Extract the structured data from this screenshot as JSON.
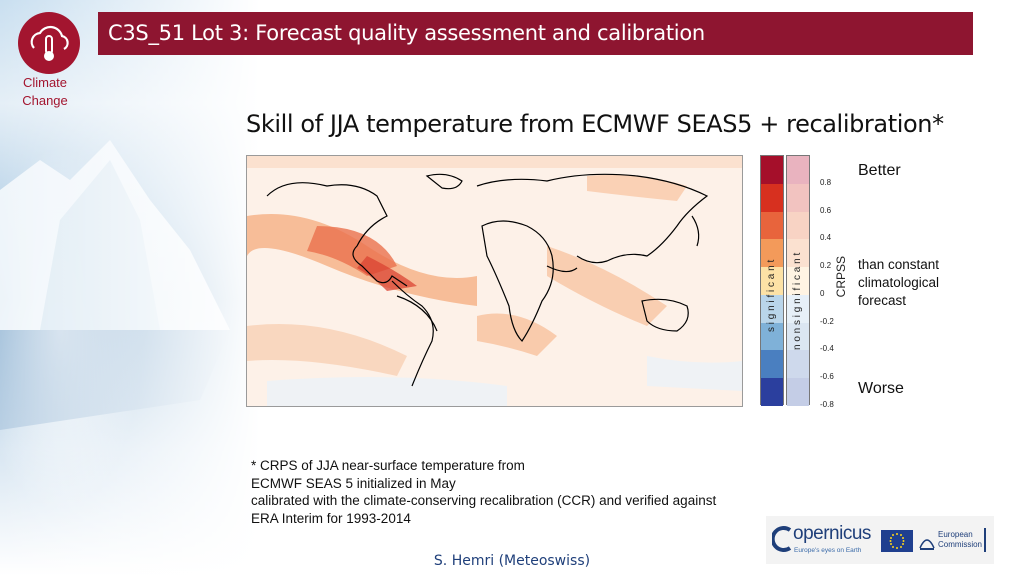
{
  "header": {
    "title": "C3S_51 Lot 3: Forecast quality assessment and calibration",
    "logo_caption_line1": "Climate",
    "logo_caption_line2": "Change"
  },
  "slide": {
    "heading": "Skill of JJA temperature from ECMWF SEAS5 + recalibration*",
    "better_label": "Better",
    "worse_label": "Worse",
    "reference_line1": "than constant",
    "reference_line2": "climatological",
    "reference_line3": "forecast"
  },
  "colorbar": {
    "axis_label": "CRPSS",
    "significant_label": "s i g n i f i c a n t",
    "non_significant_label": "n o n   s i g n i f i c a n t",
    "ticks": [
      "0.8",
      "0.6",
      "0.4",
      "0.2",
      "0",
      "-0.2",
      "-0.4",
      "-0.6",
      "-0.8"
    ],
    "significant_colors": [
      "#a50f2a",
      "#d7301f",
      "#e8643c",
      "#f39a5a",
      "#fde2a6",
      "#b9d5ea",
      "#7fb1d8",
      "#4a7fc0",
      "#2b3f9e"
    ],
    "non_significant_colors": [
      "#e9b3bf",
      "#f2c3c0",
      "#f8d3c4",
      "#fbe1d0",
      "#fff4e3",
      "#e7f0f8",
      "#dbe6f2",
      "#ced9ec",
      "#c4cde6"
    ]
  },
  "footnote": {
    "line1": "* CRPS of JJA near-surface temperature from",
    "line2": "ECMWF SEAS 5 initialized in May",
    "line3": "calibrated with the climate-conserving recalibration (CCR) and verified against",
    "line4": "ERA Interim for 1993-2014"
  },
  "credit": "S. Hemri (Meteoswiss)",
  "partners": {
    "copernicus": "opernicus",
    "copernicus_tagline": "Europe's eyes on Earth",
    "eu_line1": "European",
    "eu_line2": "Commission"
  },
  "colors": {
    "brand": "#8e1530",
    "credit_text": "#1f3f7a"
  }
}
